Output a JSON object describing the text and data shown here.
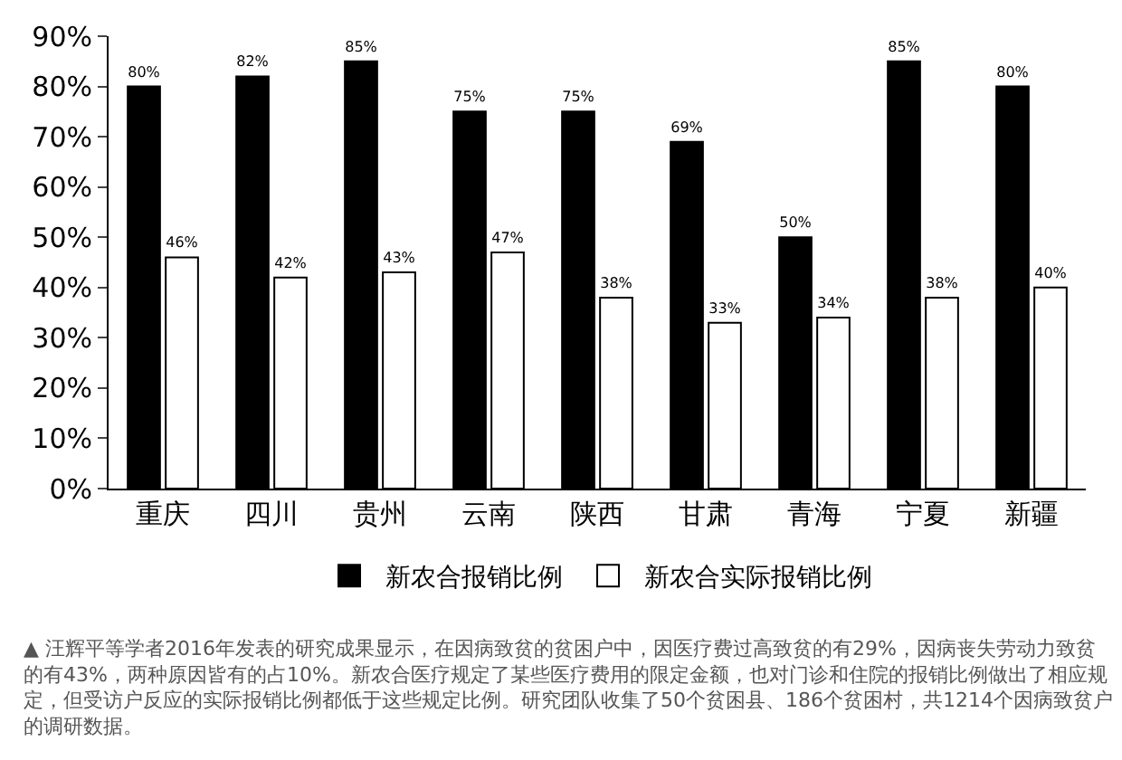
{
  "chart_data": {
    "type": "bar",
    "categories": [
      "重庆",
      "四川",
      "贵州",
      "云南",
      "陕西",
      "甘肃",
      "青海",
      "宁夏",
      "新疆"
    ],
    "series": [
      {
        "name": "新农合报销比例",
        "color": "#000000",
        "values": [
          80,
          82,
          85,
          75,
          75,
          69,
          50,
          85,
          80
        ],
        "value_labels": [
          "80%",
          "82%",
          "85%",
          "75%",
          "75%",
          "69%",
          "50%",
          "85%",
          "80%"
        ]
      },
      {
        "name": "新农合实际报销比例",
        "color": "#ffffff",
        "values": [
          46,
          42,
          43,
          47,
          38,
          33,
          34,
          38,
          40
        ],
        "value_labels": [
          "46%",
          "42%",
          "43%",
          "47%",
          "38%",
          "33%",
          "34%",
          "38%",
          "40%"
        ]
      }
    ],
    "ylim": [
      0,
      90
    ],
    "yticks": [
      {
        "value": 0,
        "label": "0%"
      },
      {
        "value": 10,
        "label": "10%"
      },
      {
        "value": 20,
        "label": "20%"
      },
      {
        "value": 30,
        "label": "30%"
      },
      {
        "value": 40,
        "label": "40%"
      },
      {
        "value": 50,
        "label": "50%"
      },
      {
        "value": 60,
        "label": "60%"
      },
      {
        "value": 70,
        "label": "70%"
      },
      {
        "value": 80,
        "label": "80%"
      },
      {
        "value": 90,
        "label": "90%"
      }
    ],
    "legend": "bottom",
    "annotations": [
      "▲ 汪辉平等学者2016年发表的研究成果显示，在因病致贫的贫困户中，因医疗费过高致贫的有29%，因病丧失劳动力致贫的有43%，两种原因皆有的占10%。新农合医疗规定了某些医疗费用的限定金额，也对门诊和住院的报销比例做出了相应规定，但受访户反应的实际报销比例都低于这些规定比例。研究团队收集了50个贫困县、186个贫困村，共1214个因病致贫户的调研数据。"
    ]
  }
}
